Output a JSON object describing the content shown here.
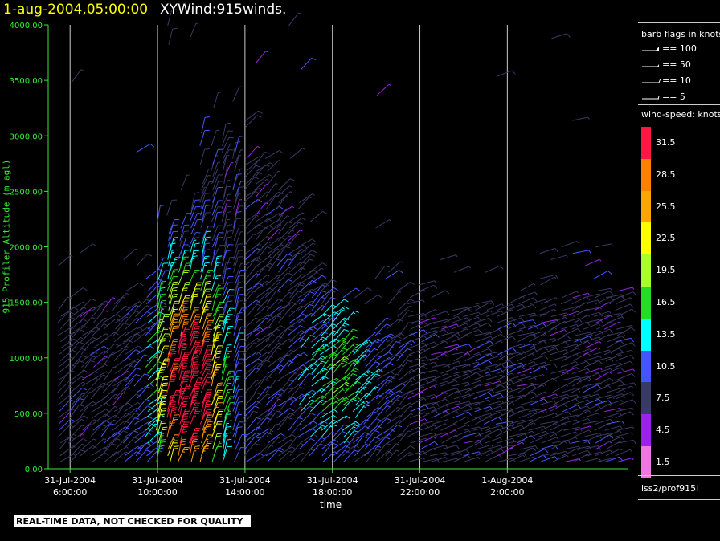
{
  "title": {
    "date": "1-aug-2004,05:00:00",
    "variable": "XYWind:915winds."
  },
  "chart_data": {
    "type": "wind-barb time-height",
    "ylabel": "915 Profiler Altitude (m agl)",
    "xlabel": "time",
    "ylim": [
      0,
      4000
    ],
    "yticks": [
      "0.00",
      "500.00",
      "1000.00",
      "1500.00",
      "2000.00",
      "2500.00",
      "3000.00",
      "3500.00",
      "4000.00"
    ],
    "xrange_hours": [
      5,
      31.5
    ],
    "xticks": [
      {
        "hour": 6,
        "line1": "31-Jul-2004",
        "line2": "6:00:00"
      },
      {
        "hour": 10,
        "line1": "31-Jul-2004",
        "line2": "10:00:00"
      },
      {
        "hour": 14,
        "line1": "31-Jul-2004",
        "line2": "14:00:00"
      },
      {
        "hour": 18,
        "line1": "31-Jul-2004",
        "line2": "18:00:00"
      },
      {
        "hour": 22,
        "line1": "31-Jul-2004",
        "line2": "22:00:00"
      },
      {
        "hour": 26,
        "line1": "1-Aug-2004",
        "line2": "2:00:00"
      }
    ],
    "profile_interval_hours": 0.5,
    "level_interval_m": 57,
    "jet_peak_knots": 32,
    "grid_vertical": true
  },
  "legend": {
    "flags_title": "barb flags in knots",
    "flags": [
      {
        "label": "== 100",
        "knots": 100
      },
      {
        "label": "== 50",
        "knots": 50
      },
      {
        "label": "== 10",
        "knots": 10
      },
      {
        "label": "== 5",
        "knots": 5
      }
    ],
    "speed_title": "wind-speed: knots",
    "speed_bins": [
      {
        "label": "31.5",
        "color": "#ff1744"
      },
      {
        "label": "28.5",
        "color": "#ff7f00"
      },
      {
        "label": "25.5",
        "color": "#ffa500"
      },
      {
        "label": "22.5",
        "color": "#ffff00"
      },
      {
        "label": "19.5",
        "color": "#a8ff2a"
      },
      {
        "label": "16.5",
        "color": "#22dd22"
      },
      {
        "label": "13.5",
        "color": "#00ffff"
      },
      {
        "label": "10.5",
        "color": "#4455ff"
      },
      {
        "label": "7.5",
        "color": "#3a3a66"
      },
      {
        "label": "4.5",
        "color": "#9922ee"
      },
      {
        "label": "1.5",
        "color": "#ee77dd"
      }
    ]
  },
  "station": "iss2/prof915l",
  "disclaimer": "REAL-TIME DATA, NOT CHECKED FOR QUALITY",
  "colors": {
    "axis": "#33ee33",
    "title_date": "#ffff00",
    "grid": "#cccccc"
  }
}
